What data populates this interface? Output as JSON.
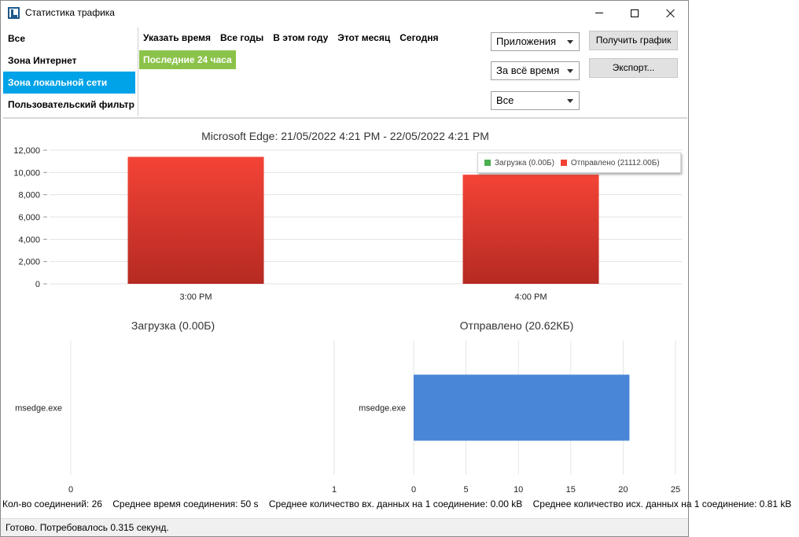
{
  "window": {
    "title": "Статистика трафика",
    "icon": "app-logo-icon"
  },
  "zones": {
    "items": [
      {
        "label": "Все",
        "selected": false
      },
      {
        "label": "Зона Интернет",
        "selected": false
      },
      {
        "label": "Зона локальной сети",
        "selected": true
      },
      {
        "label": "Пользовательский фильтр",
        "selected": false
      }
    ]
  },
  "periods": {
    "links": [
      "Указать время",
      "Все годы",
      "В этом году",
      "Этот месяц",
      "Сегодня"
    ],
    "active": "Последние 24 часа"
  },
  "filters": {
    "group_by": "Приложения",
    "range": "За всё время",
    "scope": "Все"
  },
  "buttons": {
    "get_chart": "Получить график",
    "export": "Экспорт..."
  },
  "colors": {
    "selected": "#00a2e8",
    "active_period": "#8bc34a",
    "download": "#4caf50",
    "upload": "#f44336",
    "bar_blue": "#4a86d8"
  },
  "chart_data": [
    {
      "type": "bar",
      "title": "Microsoft Edge: 21/05/2022 4:21 PM - 22/05/2022 4:21 PM",
      "categories": [
        "3:00 PM",
        "4:00 PM"
      ],
      "series": [
        {
          "name": "Загрузка (0.00Б)",
          "values": [
            0,
            0
          ]
        },
        {
          "name": "Отправлено (21112.00Б)",
          "values": [
            11400,
            9800
          ]
        }
      ],
      "ylim": [
        0,
        12000
      ],
      "yticks": [
        "0",
        "2,000",
        "4,000",
        "6,000",
        "8,000",
        "10,000",
        "12,000"
      ],
      "legend": "top-right",
      "grid": true
    },
    {
      "type": "bar",
      "orientation": "horizontal",
      "title": "Загрузка (0.00Б)",
      "categories": [
        "msedge.exe"
      ],
      "values": [
        0
      ],
      "xlim": [
        0,
        1
      ],
      "xticks": [
        "0",
        "1"
      ]
    },
    {
      "type": "bar",
      "orientation": "horizontal",
      "title": "Отправлено (20.62КБ)",
      "categories": [
        "msedge.exe"
      ],
      "values": [
        20.6
      ],
      "xlim": [
        0,
        25
      ],
      "xticks": [
        "0",
        "5",
        "10",
        "15",
        "20",
        "25"
      ]
    }
  ],
  "info": {
    "items": [
      "Кол-во соединений: 26",
      "Среднее время соединения: 50 s",
      "Среднее количество вх. данных на 1 соединение: 0.00 kB",
      "Среднее количество исх. данных на 1 соединение: 0.81 kB"
    ]
  },
  "status": {
    "text": "Готово. Потребовалось 0.315 секунд."
  }
}
